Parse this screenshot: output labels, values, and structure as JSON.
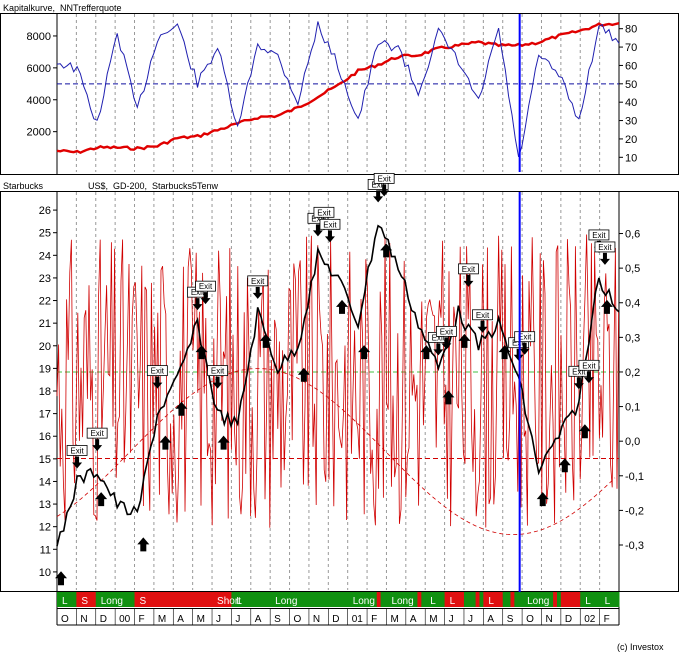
{
  "header_top": {
    "title": "Kapitalkurve,  NNTrefferquote"
  },
  "header_bottom": {
    "instrument": "Starbucks",
    "details": "US$,  GD-200,  Starbucks5Tenw"
  },
  "copyright": "(c) Investox",
  "colors": {
    "equity": "#e00000",
    "hit_rate": "#2020b0",
    "price": "#000000",
    "indicator": "#d00000",
    "long": "#109010",
    "short": "#e01010",
    "cursor": "#0000ff",
    "dashed_ref": "#1010a0",
    "green_ref": "#40c040"
  },
  "months": [
    "O",
    "N",
    "D",
    "00",
    "F",
    "M",
    "A",
    "M",
    "J",
    "J",
    "A",
    "S",
    "O",
    "N",
    "D",
    "01",
    "F",
    "M",
    "A",
    "M",
    "J",
    "J",
    "A",
    "S",
    "O",
    "N",
    "D",
    "02",
    "F"
  ],
  "position_labels": [
    {
      "text": "L",
      "month_idx": 0
    },
    {
      "text": "S",
      "month_idx": 1
    },
    {
      "text": "Long",
      "month_idx": 2
    },
    {
      "text": "S",
      "month_idx": 4
    },
    {
      "text": "Short",
      "month_idx": 8
    },
    {
      "text": "L",
      "month_idx": 9
    },
    {
      "text": "Long",
      "month_idx": 11
    },
    {
      "text": "Long",
      "month_idx": 15
    },
    {
      "text": "Long",
      "month_idx": 17
    },
    {
      "text": "L",
      "month_idx": 19
    },
    {
      "text": "L",
      "month_idx": 20
    },
    {
      "text": "L",
      "month_idx": 22
    },
    {
      "text": "Long",
      "month_idx": 24
    },
    {
      "text": "L",
      "month_idx": 27
    },
    {
      "text": "L",
      "month_idx": 28
    }
  ],
  "chart_data": [
    {
      "type": "line",
      "panel": "top",
      "left_axis_ticks": [
        2000,
        4000,
        6000,
        8000
      ],
      "right_axis_ticks": [
        10,
        20,
        30,
        40,
        50,
        60,
        70,
        80
      ],
      "ylim_right": [
        2,
        88
      ],
      "reference_lines": [
        {
          "axis": "right",
          "value": 50,
          "style": "dashed"
        }
      ],
      "series": [
        {
          "name": "Kapitalkurve",
          "axis": "left",
          "values": [
            800,
            700,
            1000,
            1000,
            950,
            1100,
            1600,
            1700,
            2100,
            2500,
            2900,
            3000,
            3500,
            4200,
            4900,
            5800,
            6200,
            6700,
            6800,
            7200,
            7400,
            7600,
            7400,
            7400,
            7600,
            8000,
            8300,
            8700,
            8800
          ]
        },
        {
          "name": "NNTrefferquote",
          "axis": "right",
          "values": [
            62,
            58,
            28,
            78,
            35,
            75,
            82,
            50,
            70,
            25,
            72,
            65,
            40,
            82,
            60,
            30,
            72,
            70,
            45,
            78,
            62,
            40,
            80,
            8,
            65,
            55,
            30,
            82,
            72
          ]
        }
      ]
    },
    {
      "type": "line",
      "panel": "bottom",
      "left_axis_ticks": [
        10,
        11,
        12,
        13,
        14,
        15,
        16,
        17,
        18,
        19,
        20,
        21,
        22,
        23,
        24,
        25,
        26
      ],
      "right_axis_ticks": [
        -0.3,
        -0.2,
        -0.1,
        0.0,
        0.1,
        0.2,
        0.3,
        0.4,
        0.5,
        0.6
      ],
      "reference_lines": [
        {
          "axis": "right",
          "value": 0.2,
          "style": "dashed",
          "color": "green"
        },
        {
          "axis": "right",
          "value": -0.05,
          "style": "dashed",
          "color": "red"
        }
      ],
      "series": [
        {
          "name": "Starbucks",
          "axis": "left",
          "values": [
            11,
            14,
            14.5,
            13,
            12.5,
            17,
            18.5,
            21,
            17,
            16.5,
            21.5,
            19,
            20,
            24,
            23,
            21,
            25.5,
            23.5,
            21,
            19,
            21.5,
            20,
            21,
            18.5,
            14.5,
            16,
            17.5,
            23,
            21.5
          ]
        }
      ],
      "exit_labels": 30,
      "position_bands": [
        "long",
        "short",
        "long",
        "long",
        "short",
        "short",
        "short",
        "short",
        "short",
        "long",
        "long",
        "long",
        "long",
        "long",
        "long",
        "long",
        "long",
        "long",
        "long",
        "long",
        "short",
        "long",
        "short",
        "long",
        "long",
        "long",
        "short",
        "long",
        "long"
      ]
    }
  ]
}
